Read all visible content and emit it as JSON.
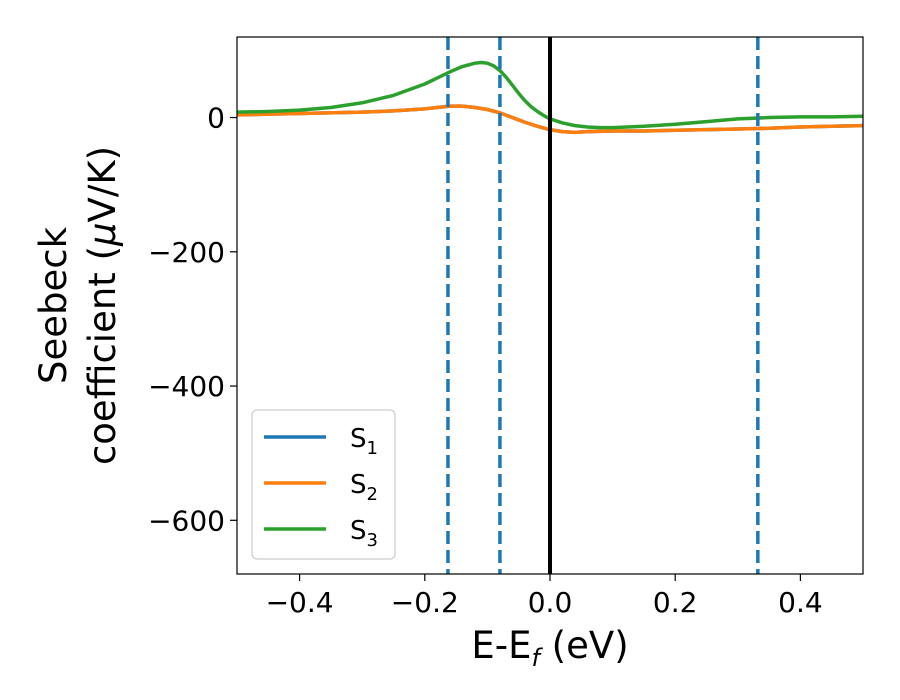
{
  "chart_data": {
    "type": "line",
    "title": "",
    "xlabel": "E-E",
    "xlabel_sub": "f",
    "xlabel_unit": " (eV)",
    "ylabel_line1": "Seebeck",
    "ylabel_line2_prefix": "coefficient  (",
    "ylabel_line2_mu": "μ",
    "ylabel_line2_suffix": "V/K)",
    "xlim": [
      -0.5,
      0.5
    ],
    "ylim": [
      -680,
      120
    ],
    "xticks": [
      -0.4,
      -0.2,
      0.0,
      0.2,
      0.4
    ],
    "xtick_labels": [
      "−0.4",
      "−0.2",
      "0.0",
      "0.2",
      "0.4"
    ],
    "yticks": [
      0,
      -200,
      -400,
      -600
    ],
    "ytick_labels": [
      "0",
      "−200",
      "−400",
      "−600"
    ],
    "grid": false,
    "legend_placement": "lower-left",
    "vlines_dashed": [
      -0.163,
      -0.08,
      0.332
    ],
    "vline_dashed_color": "#1f77b4",
    "vline_solid": 0.0,
    "vline_solid_color": "#000000",
    "series": [
      {
        "name": "S",
        "sub": "1",
        "color": "#1f77b4",
        "x": [
          -0.5,
          -0.4,
          -0.3,
          -0.25,
          -0.2,
          -0.18,
          -0.16,
          -0.14,
          -0.12,
          -0.1,
          -0.08,
          -0.06,
          -0.04,
          -0.02,
          0.0,
          0.02,
          0.04,
          0.06,
          0.1,
          0.15,
          0.2,
          0.25,
          0.3,
          0.35,
          0.4,
          0.45,
          0.5
        ],
        "y": [
          4,
          6,
          8,
          10,
          13,
          15,
          17,
          17,
          15,
          12,
          7,
          0,
          -7,
          -13,
          -18,
          -21,
          -22,
          -21,
          -20,
          -20,
          -19,
          -18,
          -17,
          -16,
          -14,
          -13,
          -12
        ]
      },
      {
        "name": "S",
        "sub": "2",
        "color": "#ff7f0e",
        "x": [
          -0.5,
          -0.4,
          -0.3,
          -0.25,
          -0.2,
          -0.18,
          -0.16,
          -0.14,
          -0.12,
          -0.1,
          -0.08,
          -0.06,
          -0.04,
          -0.02,
          0.0,
          0.02,
          0.04,
          0.06,
          0.1,
          0.15,
          0.2,
          0.25,
          0.3,
          0.35,
          0.4,
          0.45,
          0.5
        ],
        "y": [
          4,
          6,
          8,
          10,
          13,
          15,
          17,
          17,
          15,
          12,
          7,
          0,
          -7,
          -13,
          -18,
          -21,
          -22,
          -21,
          -20,
          -20,
          -19,
          -18,
          -17,
          -16,
          -14,
          -13,
          -12
        ]
      },
      {
        "name": "S",
        "sub": "3",
        "color": "#2ca02c",
        "x": [
          -0.5,
          -0.45,
          -0.4,
          -0.35,
          -0.3,
          -0.25,
          -0.2,
          -0.18,
          -0.16,
          -0.14,
          -0.12,
          -0.11,
          -0.1,
          -0.09,
          -0.08,
          -0.07,
          -0.06,
          -0.05,
          -0.04,
          -0.03,
          -0.02,
          -0.01,
          0.0,
          0.02,
          0.04,
          0.06,
          0.08,
          0.1,
          0.15,
          0.2,
          0.25,
          0.3,
          0.35,
          0.4,
          0.45,
          0.5
        ],
        "y": [
          8,
          9,
          11,
          15,
          22,
          33,
          50,
          59,
          68,
          76,
          81,
          82,
          81,
          77,
          70,
          60,
          48,
          36,
          25,
          16,
          9,
          3,
          -2,
          -8,
          -12,
          -14,
          -15,
          -15,
          -13,
          -10,
          -6,
          -2,
          0,
          1,
          1,
          2
        ]
      }
    ]
  }
}
